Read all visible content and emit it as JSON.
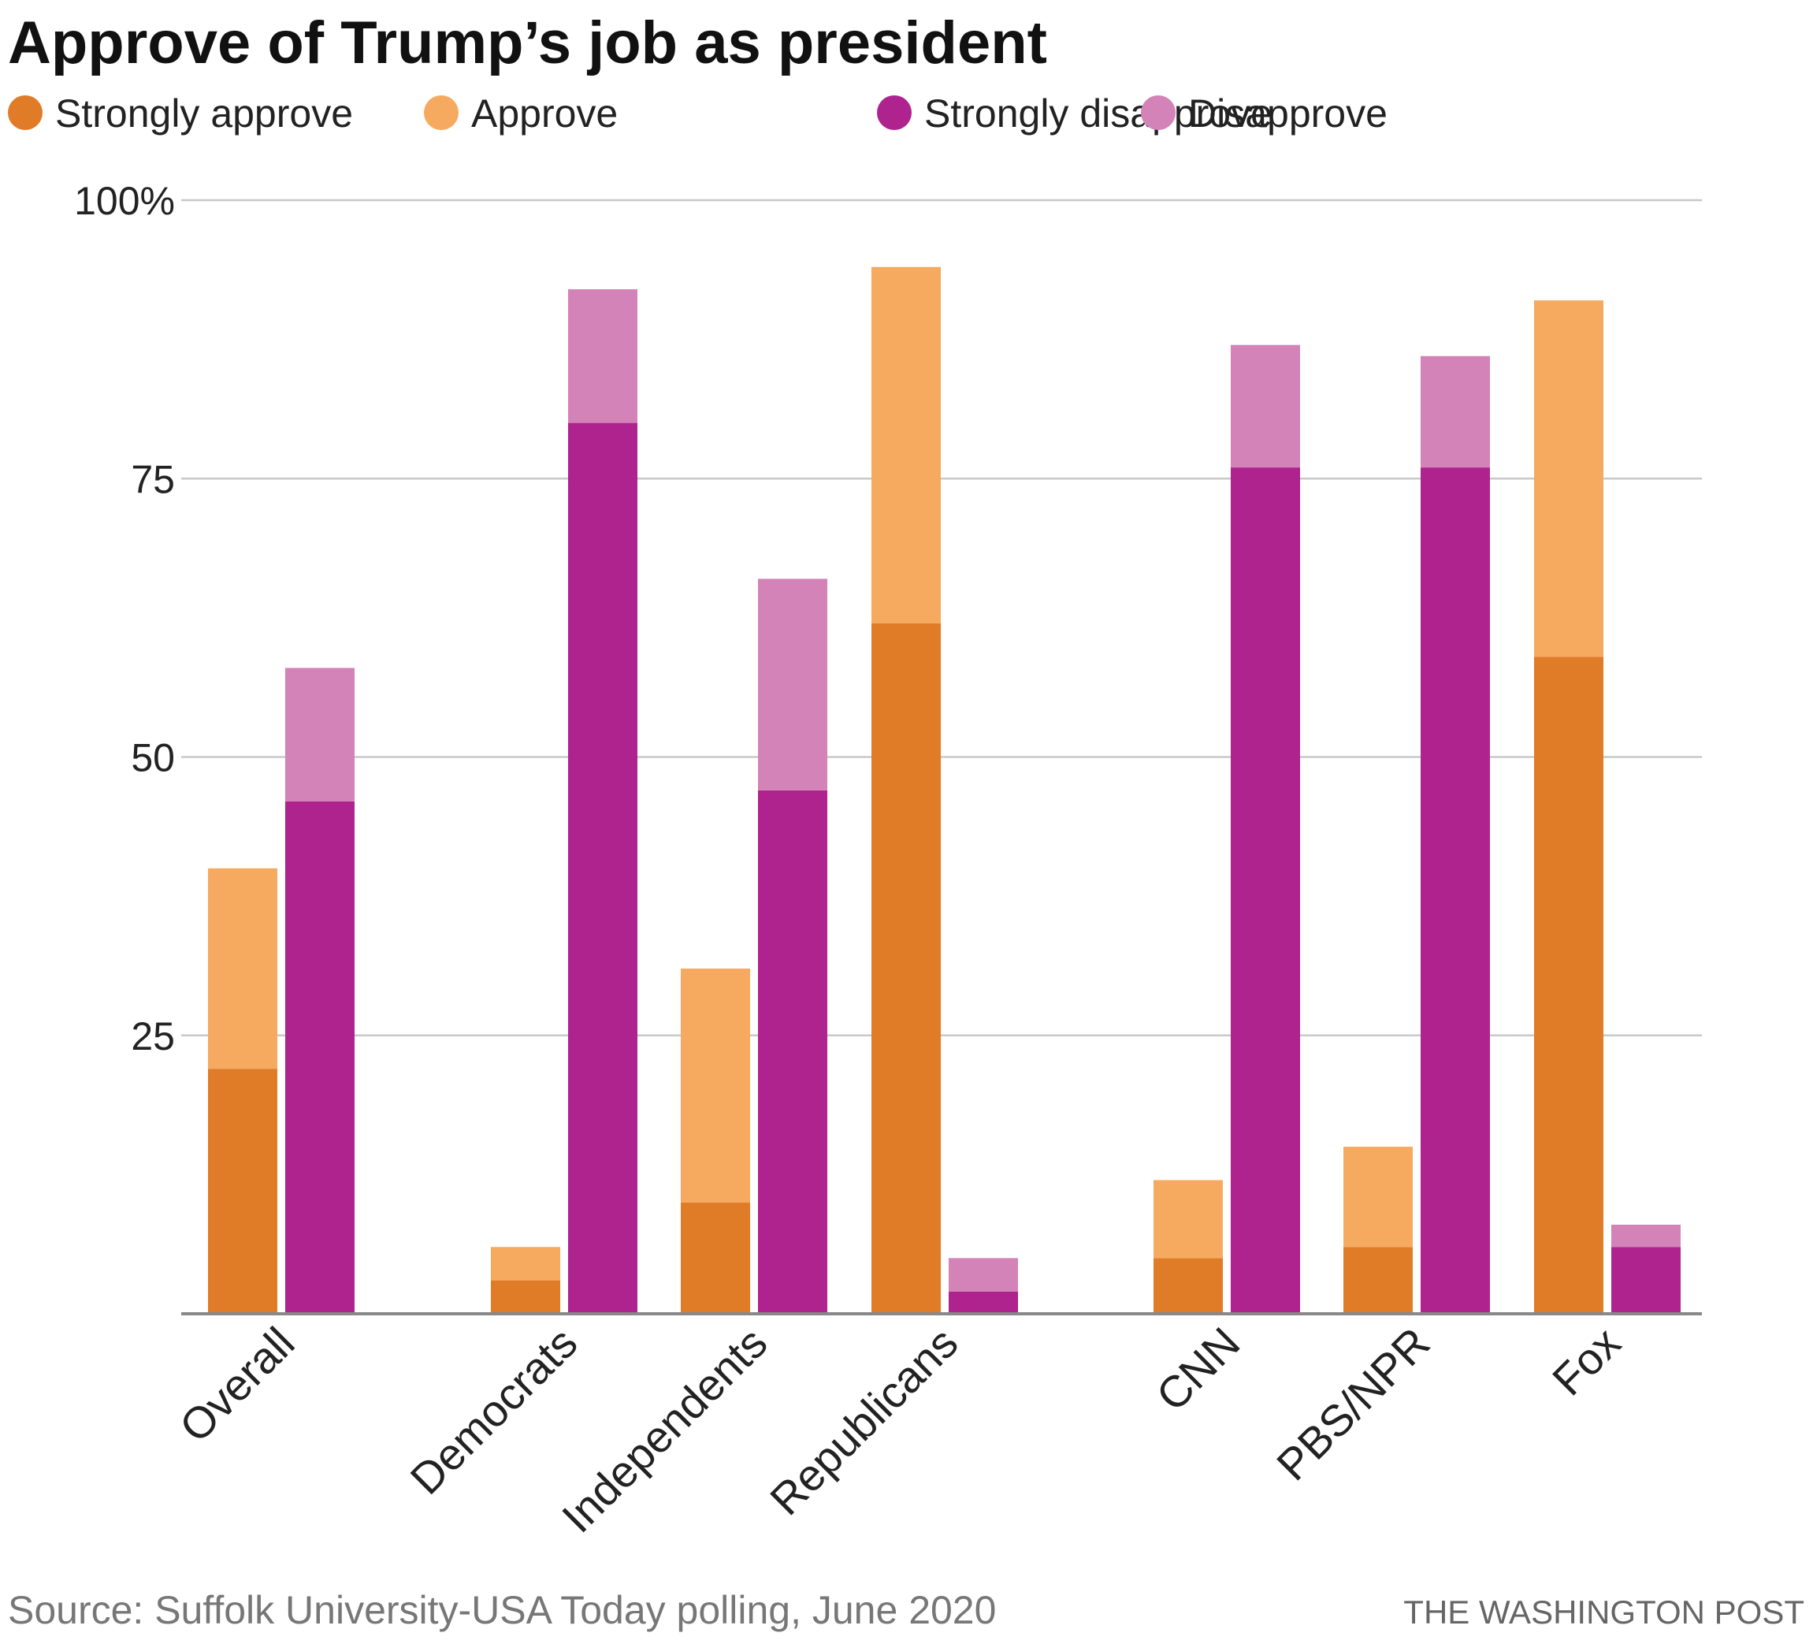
{
  "chart_data": {
    "type": "bar",
    "title": "Approve of Trump’s job as president",
    "categories": [
      "Overall",
      "Democrats",
      "Independents",
      "Republicans",
      "CNN",
      "PBS/NPR",
      "Fox"
    ],
    "groups": [
      {
        "name": "approve",
        "segments": [
          "Strongly approve",
          "Approve"
        ]
      },
      {
        "name": "disapprove",
        "segments": [
          "Strongly disapprove",
          "Disapprove"
        ]
      }
    ],
    "series": [
      {
        "name": "Strongly approve",
        "color": "#e07b28",
        "values": [
          22,
          3,
          10,
          62,
          5,
          6,
          59
        ]
      },
      {
        "name": "Approve",
        "color": "#f6aa60",
        "values": [
          18,
          3,
          21,
          32,
          7,
          9,
          32
        ]
      },
      {
        "name": "Strongly disapprove",
        "color": "#ae238e",
        "values": [
          46,
          80,
          47,
          2,
          76,
          76,
          6
        ]
      },
      {
        "name": "Disapprove",
        "color": "#d383b7",
        "values": [
          12,
          12,
          19,
          3,
          11,
          10,
          2
        ]
      }
    ],
    "ylim": [
      0,
      100
    ],
    "yticks": [
      {
        "value": 100,
        "label": "100%"
      },
      {
        "value": 75,
        "label": "75"
      },
      {
        "value": 50,
        "label": "50"
      },
      {
        "value": 25,
        "label": "25"
      }
    ],
    "grid": true,
    "legend_position": "top-left",
    "source": "Source: Suffolk University-USA Today polling, June 2020",
    "credit": "THE WASHINGTON POST"
  }
}
